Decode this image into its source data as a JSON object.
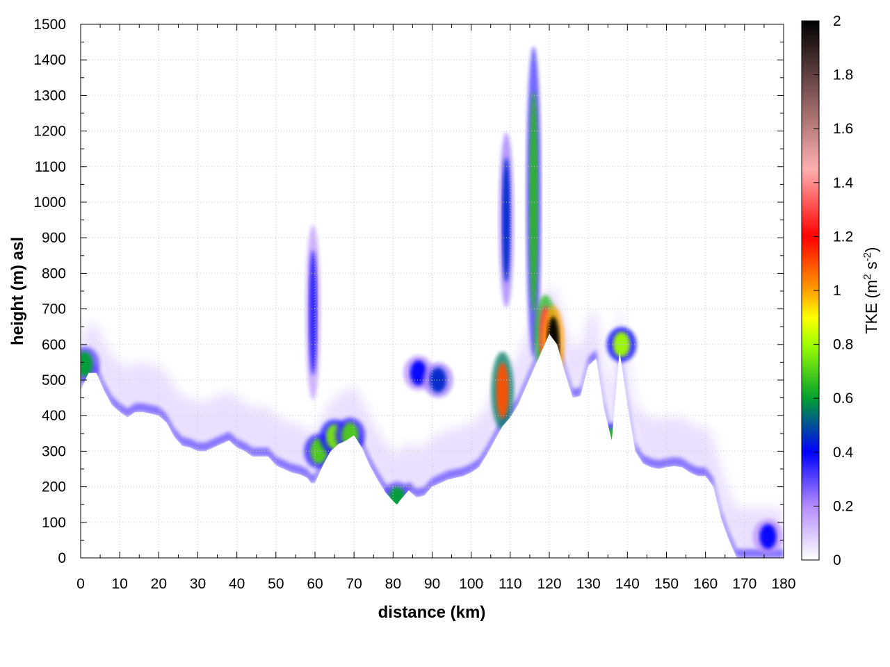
{
  "chart_data": {
    "type": "heatmap",
    "title": "",
    "xlabel": "distance (km)",
    "ylabel": "height (m) asl",
    "xlim": [
      0,
      180
    ],
    "ylim": [
      0,
      1500
    ],
    "x_ticks": [
      "0",
      "10",
      "20",
      "30",
      "40",
      "50",
      "60",
      "70",
      "80",
      "90",
      "100",
      "110",
      "120",
      "130",
      "140",
      "150",
      "160",
      "170",
      "180"
    ],
    "y_ticks": [
      "0",
      "100",
      "200",
      "300",
      "400",
      "500",
      "600",
      "700",
      "800",
      "900",
      "1000",
      "1100",
      "1200",
      "1300",
      "1400",
      "1500"
    ],
    "grid": true,
    "colorbar": {
      "label_prefix": "TKE (m",
      "label_sup1": "2",
      "label_mid": " s",
      "label_sup2": "-2",
      "label_suffix": ")",
      "range": [
        0,
        2
      ],
      "ticks": [
        "0",
        "0.2",
        "0.4",
        "0.6",
        "0.8",
        "1",
        "1.2",
        "1.4",
        "1.6",
        "1.8",
        "2"
      ],
      "colors": [
        {
          "v": 0.0,
          "c": "#ffffff"
        },
        {
          "v": 0.2,
          "c": "#b58cff"
        },
        {
          "v": 0.4,
          "c": "#0000ff"
        },
        {
          "v": 0.6,
          "c": "#00a030"
        },
        {
          "v": 0.8,
          "c": "#a0ff00"
        },
        {
          "v": 0.9,
          "c": "#ffff00"
        },
        {
          "v": 1.0,
          "c": "#ffa000"
        },
        {
          "v": 1.2,
          "c": "#ff0000"
        },
        {
          "v": 1.45,
          "c": "#ffb0b0"
        },
        {
          "v": 1.7,
          "c": "#906060"
        },
        {
          "v": 2.0,
          "c": "#000000"
        }
      ]
    },
    "terrain_profile": [
      [
        0,
        470
      ],
      [
        2,
        520
      ],
      [
        4,
        520
      ],
      [
        6,
        470
      ],
      [
        8,
        430
      ],
      [
        10,
        410
      ],
      [
        12,
        395
      ],
      [
        14,
        410
      ],
      [
        16,
        410
      ],
      [
        18,
        405
      ],
      [
        20,
        400
      ],
      [
        22,
        380
      ],
      [
        24,
        340
      ],
      [
        26,
        315
      ],
      [
        28,
        310
      ],
      [
        30,
        300
      ],
      [
        32,
        300
      ],
      [
        34,
        310
      ],
      [
        36,
        320
      ],
      [
        38,
        330
      ],
      [
        40,
        310
      ],
      [
        42,
        300
      ],
      [
        44,
        285
      ],
      [
        46,
        285
      ],
      [
        48,
        285
      ],
      [
        50,
        260
      ],
      [
        52,
        250
      ],
      [
        54,
        240
      ],
      [
        56,
        235
      ],
      [
        58,
        225
      ],
      [
        59,
        210
      ],
      [
        60,
        210
      ],
      [
        62,
        260
      ],
      [
        64,
        300
      ],
      [
        66,
        320
      ],
      [
        68,
        330
      ],
      [
        70,
        345
      ],
      [
        72,
        310
      ],
      [
        74,
        260
      ],
      [
        76,
        220
      ],
      [
        78,
        185
      ],
      [
        80,
        160
      ],
      [
        81,
        150
      ],
      [
        82,
        165
      ],
      [
        84,
        190
      ],
      [
        86,
        170
      ],
      [
        88,
        175
      ],
      [
        90,
        200
      ],
      [
        92,
        210
      ],
      [
        94,
        220
      ],
      [
        96,
        225
      ],
      [
        98,
        230
      ],
      [
        100,
        240
      ],
      [
        102,
        255
      ],
      [
        104,
        290
      ],
      [
        106,
        330
      ],
      [
        108,
        370
      ],
      [
        110,
        395
      ],
      [
        112,
        430
      ],
      [
        114,
        480
      ],
      [
        116,
        530
      ],
      [
        118,
        580
      ],
      [
        120,
        630
      ],
      [
        122,
        600
      ],
      [
        124,
        520
      ],
      [
        126,
        450
      ],
      [
        128,
        455
      ],
      [
        130,
        540
      ],
      [
        132,
        560
      ],
      [
        134,
        420
      ],
      [
        136,
        330
      ],
      [
        138,
        580
      ],
      [
        140,
        430
      ],
      [
        142,
        300
      ],
      [
        144,
        265
      ],
      [
        146,
        255
      ],
      [
        148,
        250
      ],
      [
        150,
        255
      ],
      [
        152,
        258
      ],
      [
        154,
        255
      ],
      [
        156,
        240
      ],
      [
        158,
        230
      ],
      [
        160,
        230
      ],
      [
        162,
        200
      ],
      [
        164,
        110
      ],
      [
        166,
        50
      ],
      [
        168,
        0
      ],
      [
        180,
        0
      ]
    ],
    "tke_features": [
      {
        "x": 1,
        "z": 545,
        "v": 0.6
      },
      {
        "x": 59.5,
        "z": 690,
        "v": 0.35
      },
      {
        "x": 61,
        "z": 300,
        "v": 0.7
      },
      {
        "x": 65,
        "z": 340,
        "v": 0.75
      },
      {
        "x": 69,
        "z": 345,
        "v": 0.7
      },
      {
        "x": 81,
        "z": 165,
        "v": 0.6
      },
      {
        "x": 86.5,
        "z": 520,
        "v": 0.4
      },
      {
        "x": 91.5,
        "z": 500,
        "v": 0.45
      },
      {
        "x": 108,
        "z": 470,
        "v": 1.1
      },
      {
        "x": 109,
        "z": 950,
        "v": 0.45
      },
      {
        "x": 116,
        "z": 1000,
        "v": 0.65
      },
      {
        "x": 119,
        "z": 630,
        "v": 1.3
      },
      {
        "x": 121,
        "z": 600,
        "v": 2.0
      },
      {
        "x": 136,
        "z": 330,
        "v": 0.65
      },
      {
        "x": 138.5,
        "z": 600,
        "v": 0.8
      },
      {
        "x": 176,
        "z": 60,
        "v": 0.4
      }
    ]
  }
}
